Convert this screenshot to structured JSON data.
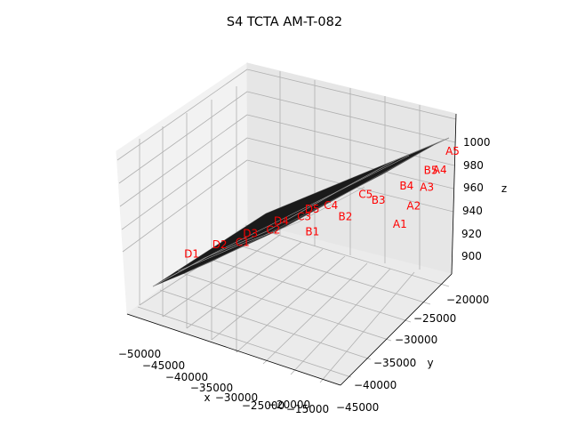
{
  "chart_data": {
    "type": "surface3d",
    "title": "S4 TCTA AM-T-082",
    "xlabel": "x",
    "ylabel": "y",
    "zlabel": "z",
    "xlim": [
      -52000,
      -12000
    ],
    "ylim": [
      -46000,
      -18000
    ],
    "zlim": [
      885,
      1010
    ],
    "x_ticks": [
      "−50000",
      "−45000",
      "−40000",
      "−35000",
      "−30000",
      "−25000",
      "−20000",
      "−15000"
    ],
    "y_ticks": [
      "−45000",
      "−40000",
      "−35000",
      "−30000",
      "−25000",
      "−20000"
    ],
    "z_ticks": [
      "900",
      "920",
      "940",
      "960",
      "980",
      "1000"
    ],
    "grid": true,
    "surface_color": "#000000",
    "label_color": "#ff0000",
    "points": [
      {
        "label": "A1",
        "x": -19500,
        "y": -25000,
        "z": 944
      },
      {
        "label": "A2",
        "x": -17800,
        "y": -24000,
        "z": 958
      },
      {
        "label": "A3",
        "x": -16200,
        "y": -23000,
        "z": 972
      },
      {
        "label": "A4",
        "x": -14500,
        "y": -22200,
        "z": 986
      },
      {
        "label": "A5",
        "x": -13000,
        "y": -21200,
        "z": 1000
      },
      {
        "label": "B1",
        "x": -33000,
        "y": -28500,
        "z": 928
      },
      {
        "label": "B2",
        "x": -28500,
        "y": -26500,
        "z": 941
      },
      {
        "label": "B3",
        "x": -24000,
        "y": -24500,
        "z": 955
      },
      {
        "label": "B4",
        "x": -20000,
        "y": -23000,
        "z": 968
      },
      {
        "label": "B5",
        "x": -16500,
        "y": -21800,
        "z": 982
      },
      {
        "label": "C1",
        "x": -44000,
        "y": -31000,
        "z": 911
      },
      {
        "label": "C2",
        "x": -39500,
        "y": -29500,
        "z": 923
      },
      {
        "label": "C3",
        "x": -35000,
        "y": -28000,
        "z": 936
      },
      {
        "label": "C4",
        "x": -31000,
        "y": -26800,
        "z": 947
      },
      {
        "label": "C5",
        "x": -26000,
        "y": -25000,
        "z": 958
      },
      {
        "label": "D1",
        "x": -51500,
        "y": -33500,
        "z": 898
      },
      {
        "label": "D2",
        "x": -47500,
        "y": -32000,
        "z": 907
      },
      {
        "label": "D3",
        "x": -43000,
        "y": -30500,
        "z": 918
      },
      {
        "label": "D4",
        "x": -38500,
        "y": -29000,
        "z": 930
      },
      {
        "label": "D5",
        "x": -34000,
        "y": -27500,
        "z": 942
      }
    ],
    "point_rows": [
      "A",
      "B",
      "C",
      "D"
    ]
  }
}
